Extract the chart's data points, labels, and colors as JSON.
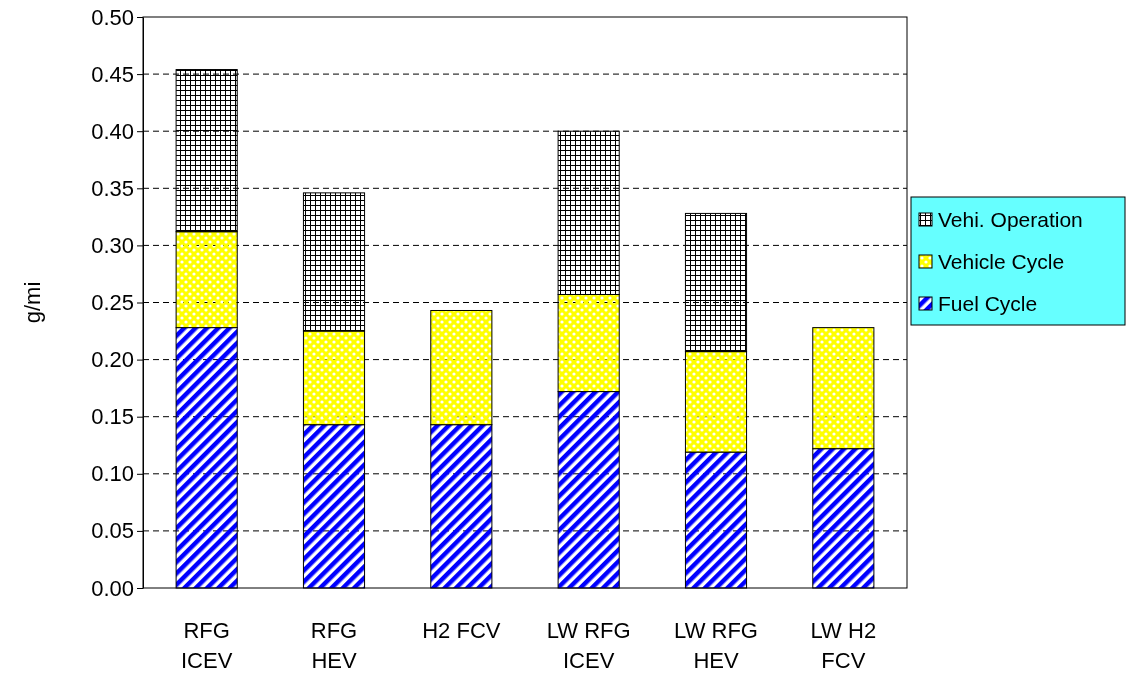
{
  "chart_data": {
    "type": "bar",
    "stacked": true,
    "ylabel": "g/mi",
    "categories": [
      "RFG\nICEV",
      "RFG\nHEV",
      "H2 FCV",
      "LW RFG\nICEV",
      "LW RFG\nHEV",
      "LW H2\nFCV"
    ],
    "series": [
      {
        "name": "Fuel Cycle",
        "color": "#0000ff",
        "values": [
          0.228,
          0.143,
          0.143,
          0.172,
          0.119,
          0.122
        ]
      },
      {
        "name": "Vehicle Cycle",
        "color": "#ffff00",
        "values": [
          0.084,
          0.082,
          0.1,
          0.085,
          0.088,
          0.106
        ]
      },
      {
        "name": "Vehi. Operation",
        "color": "#000000",
        "values": [
          0.142,
          0.121,
          0,
          0.143,
          0.121,
          0
        ]
      }
    ],
    "ylim": [
      0,
      0.5
    ],
    "yticks": [
      {
        "value": 0,
        "label": "0.00"
      },
      {
        "value": 0.05,
        "label": "0.05"
      },
      {
        "value": 0.1,
        "label": "0.10"
      },
      {
        "value": 0.15,
        "label": "0.15"
      },
      {
        "value": 0.2,
        "label": "0.20"
      },
      {
        "value": 0.25,
        "label": "0.25"
      },
      {
        "value": 0.3,
        "label": "0.30"
      },
      {
        "value": 0.35,
        "label": "0.35"
      },
      {
        "value": 0.4,
        "label": "0.40"
      },
      {
        "value": 0.45,
        "label": "0.45"
      },
      {
        "value": 0.5,
        "label": "0.50"
      }
    ],
    "grid": "y",
    "legend": "right"
  }
}
